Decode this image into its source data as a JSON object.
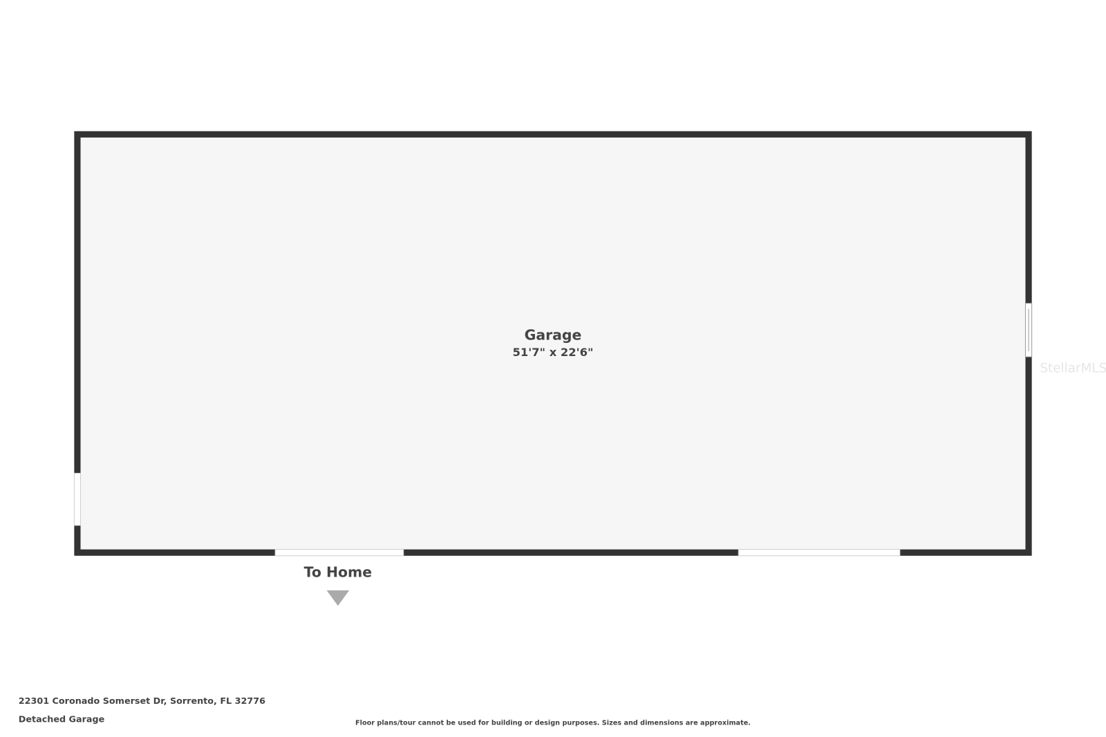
{
  "rooms": [
    {
      "name": "Garage",
      "dimensions": "51'7\" x 22'6\""
    }
  ],
  "entrance": {
    "label": "To Home"
  },
  "watermark": "StellarMLS",
  "footer": {
    "address": "22301 Coronado Somerset Dr, Sorrento, FL 32776",
    "floor": "Detached Garage",
    "disclaimer": "Floor plans/tour cannot be used for building or design purposes. Sizes and dimensions are approximate."
  }
}
